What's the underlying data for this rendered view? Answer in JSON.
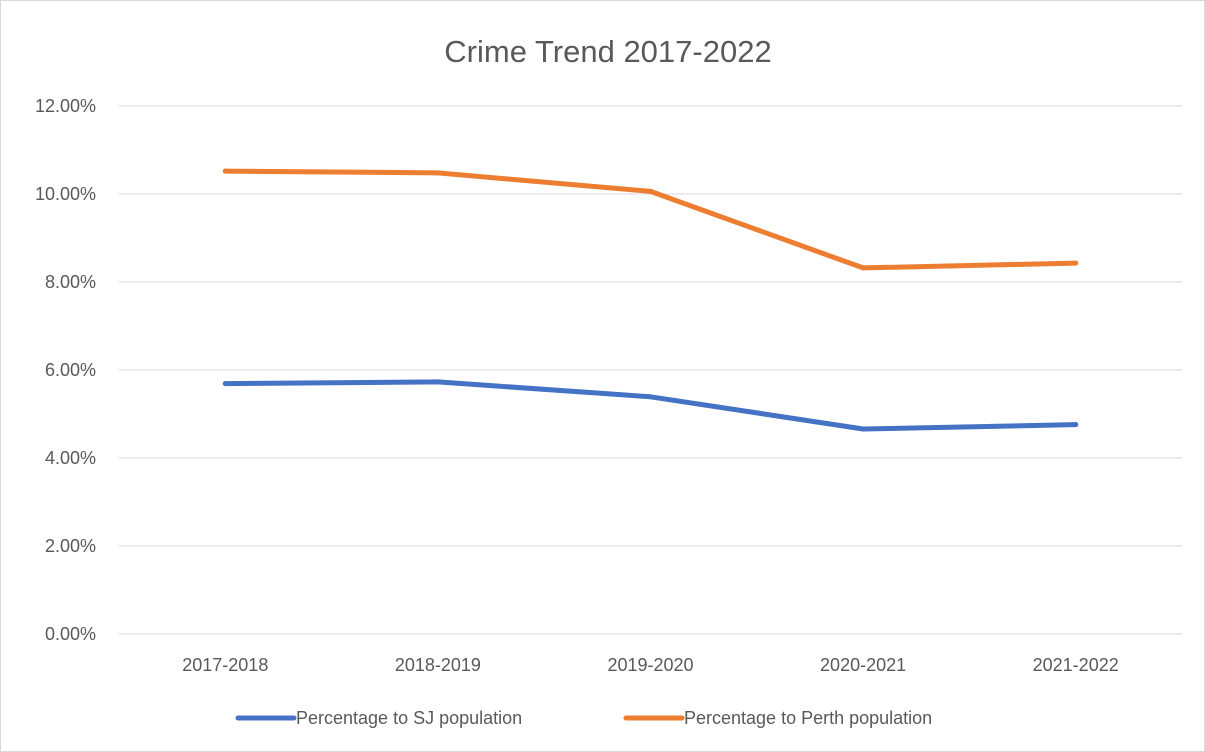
{
  "chart_data": {
    "type": "line",
    "title": "Crime Trend 2017-2022",
    "xlabel": "",
    "ylabel": "",
    "categories": [
      "2017-2018",
      "2018-2019",
      "2019-2020",
      "2020-2021",
      "2021-2022"
    ],
    "series": [
      {
        "name": "Percentage to SJ population",
        "color": "#4472C4",
        "values": [
          5.69,
          5.73,
          5.39,
          4.66,
          4.76
        ]
      },
      {
        "name": "Percentage to Perth population",
        "color": "#ED7D31",
        "values": [
          10.52,
          10.48,
          10.06,
          8.32,
          8.43
        ]
      }
    ],
    "ylim": [
      0,
      12
    ],
    "y_ticks": [
      "0.00%",
      "2.00%",
      "4.00%",
      "6.00%",
      "8.00%",
      "10.00%",
      "12.00%"
    ],
    "y_tick_values": [
      0,
      2,
      4,
      6,
      8,
      10,
      12
    ],
    "grid": true,
    "gridline_color": "#d9d9d9",
    "legend_position": "bottom"
  }
}
